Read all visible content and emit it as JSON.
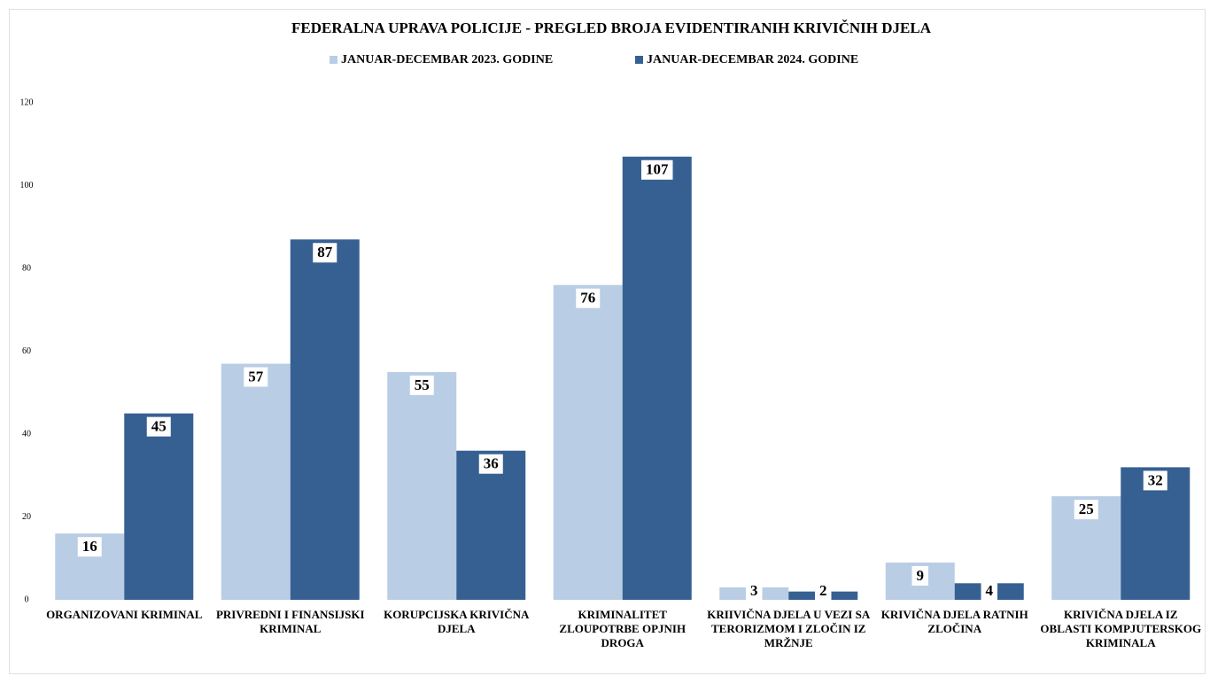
{
  "chart_data": {
    "type": "bar",
    "title": "FEDERALNA UPRAVA POLICIJE - PREGLED BROJA EVIDENTIRANIH KRIVIČNIH DJELA",
    "categories": [
      "ORGANIZOVANI KRIMINAL",
      "PRIVREDNI I FINANSIJSKI KRIMINAL",
      "KORUPCIJSKA KRIVIČNA DJELA",
      "KRIMINALITET ZLOUPOTRBE OPJNIH DROGA",
      "KRIIVIČNA DJELA U VEZI SA TERORIZMOM I ZLOČIN IZ MRŽNJE",
      "KRIVIČNA DJELA RATNIH ZLOČINA",
      "KRIVIČNA DJELA IZ OBLASTI KOMPJUTERSKOG KRIMINALA"
    ],
    "series": [
      {
        "name": "JANUAR-DECEMBAR 2023. GODINE",
        "color": "#b9cde5",
        "values": [
          16,
          57,
          55,
          76,
          3,
          9,
          25
        ]
      },
      {
        "name": "JANUAR-DECEMBAR 2024. GODINE",
        "color": "#366092",
        "values": [
          45,
          87,
          36,
          107,
          2,
          4,
          32
        ]
      }
    ],
    "ylim": [
      0,
      120
    ],
    "yticks": [
      0,
      20,
      40,
      60,
      80,
      100,
      120
    ],
    "grid": false,
    "legend": "top"
  }
}
